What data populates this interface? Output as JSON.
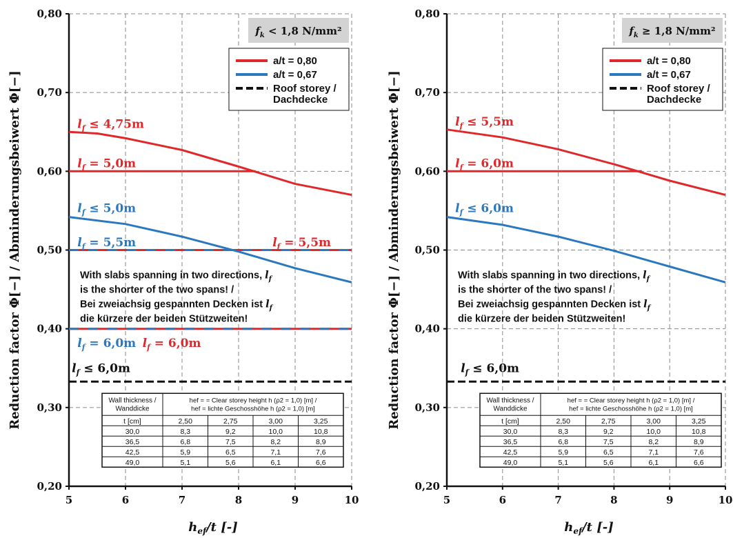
{
  "chart_data": [
    {
      "type": "line",
      "title": "",
      "condition_label": "f_k < 1,8 N/mm²",
      "cond_f": "f",
      "cond_sub": "k",
      "cond_rest": " < 1,8 N/mm²",
      "ylabel": "Reduction factor Φ[−] / Abminderungsbeiwert Φ[−]",
      "xlabel_main": "h",
      "xlabel_sub": "ef",
      "xlabel_tail": "/t [-]",
      "xlim": [
        5,
        10
      ],
      "ylim": [
        0.2,
        0.8
      ],
      "x_ticks": [
        "5",
        "6",
        "7",
        "8",
        "9",
        "10"
      ],
      "y_ticks": [
        "0,20",
        "0,30",
        "0,40",
        "0,50",
        "0,60",
        "0,70",
        "0,80"
      ],
      "grid": true,
      "legend_position": "top-right",
      "legend": [
        {
          "label": "a/t = 0,80",
          "color": "#e0282b",
          "style": "solid"
        },
        {
          "label": "a/t = 0,67",
          "color": "#2a78c0",
          "style": "solid"
        },
        {
          "label": "Roof storey /",
          "label2": "Dachdecke",
          "color": "#111111",
          "style": "dashed"
        }
      ],
      "series": [
        {
          "color": "#e0282b",
          "style": "solid",
          "points": [
            [
              5,
              0.65
            ],
            [
              5.5,
              0.648
            ],
            [
              6,
              0.642
            ],
            [
              7,
              0.627
            ],
            [
              8,
              0.606
            ],
            [
              9,
              0.584
            ],
            [
              10,
              0.57
            ]
          ]
        },
        {
          "color": "#e0282b",
          "style": "solid",
          "points": [
            [
              5,
              0.6
            ],
            [
              8.3,
              0.6
            ]
          ]
        },
        {
          "color": "#e0282b",
          "style": "solid",
          "points": [
            [
              5,
              0.5
            ],
            [
              10,
              0.5
            ]
          ]
        },
        {
          "color": "#2a78c0",
          "style": "dashdash",
          "points": [
            [
              5,
              0.5
            ],
            [
              10,
              0.5
            ]
          ]
        },
        {
          "color": "#2a78c0",
          "style": "solid",
          "points": [
            [
              5,
              0.542
            ],
            [
              6,
              0.533
            ],
            [
              7,
              0.517
            ],
            [
              8,
              0.498
            ],
            [
              9,
              0.477
            ],
            [
              10,
              0.459
            ]
          ]
        },
        {
          "color": "#e0282b",
          "style": "solid",
          "points": [
            [
              5,
              0.4
            ],
            [
              10,
              0.4
            ]
          ]
        },
        {
          "color": "#2a78c0",
          "style": "dashdash",
          "points": [
            [
              5,
              0.4
            ],
            [
              10,
              0.4
            ]
          ]
        },
        {
          "color": "#111111",
          "style": "dashed",
          "points": [
            [
              5,
              0.333
            ],
            [
              10,
              0.333
            ]
          ]
        }
      ],
      "annotations": [
        {
          "l": "l",
          "sub": "f",
          "text": " ≤ 4,75m",
          "color": "#e0282b",
          "x": 5.15,
          "y": 0.655
        },
        {
          "l": "l",
          "sub": "f",
          "text": " = 5,0m",
          "color": "#e0282b",
          "x": 5.15,
          "y": 0.605
        },
        {
          "l": "l",
          "sub": "f",
          "text": " ≤ 5,0m",
          "color": "#2a78c0",
          "x": 5.15,
          "y": 0.548
        },
        {
          "l": "l",
          "sub": "f",
          "text": " = 5,5m",
          "color": "#2a78c0",
          "x": 5.15,
          "y": 0.505
        },
        {
          "l": "l",
          "sub": "f",
          "text": " = 5,5m",
          "color": "#e0282b",
          "x": 8.6,
          "y": 0.505
        },
        {
          "l": "l",
          "sub": "f",
          "text": " = 6,0m",
          "color": "#2a78c0",
          "x": 5.15,
          "y": 0.377
        },
        {
          "l": "l",
          "sub": "f",
          "text": " = 6,0m",
          "color": "#e0282b",
          "x": 6.3,
          "y": 0.377
        },
        {
          "l": "l",
          "sub": "f",
          "text": " ≤ 6,0m",
          "color": "#111111",
          "x": 5.05,
          "y": 0.345
        }
      ],
      "note_lines": [
        {
          "text": "With slabs spanning in two directions, ",
          "lf": true
        },
        {
          "text": "is the shorter of the two spans! /",
          "lf": false
        },
        {
          "text": "Bei zweiachsig gespannten Decken ist ",
          "lf": true
        },
        {
          "text": "die kürzere der beiden Stützweiten!",
          "lf": false
        }
      ],
      "table": {
        "header_left": [
          "Wall thickness /",
          "Wanddicke"
        ],
        "header_right": [
          "hef = = Clear storey height h (ρ2 = 1,0)  [m] /",
          "hef = lichte Geschosshöhe h (ρ2 = 1,0)  [m]"
        ],
        "rows": [
          [
            "t [cm]",
            "2,50",
            "2,75",
            "3,00",
            "3,25"
          ],
          [
            "30,0",
            "8,3",
            "9,2",
            "10,0",
            "10,8"
          ],
          [
            "36,5",
            "6,8",
            "7,5",
            "8,2",
            "8,9"
          ],
          [
            "42,5",
            "5,9",
            "6,5",
            "7,1",
            "7,6"
          ],
          [
            "49,0",
            "5,1",
            "5,6",
            "6,1",
            "6,6"
          ]
        ]
      }
    },
    {
      "type": "line",
      "title": "",
      "condition_label": "f_k ≥ 1,8 N/mm²",
      "cond_f": "f",
      "cond_sub": "k",
      "cond_rest": " ≥ 1,8 N/mm²",
      "ylabel": "Reduction factor Φ[−] / Abminderungsbeiwert Φ[−]",
      "xlabel_main": "h",
      "xlabel_sub": "ef",
      "xlabel_tail": "/t [-]",
      "xlim": [
        5,
        10
      ],
      "ylim": [
        0.2,
        0.8
      ],
      "x_ticks": [
        "5",
        "6",
        "7",
        "8",
        "9",
        "10"
      ],
      "y_ticks": [
        "0,20",
        "0,30",
        "0,40",
        "0,50",
        "0,60",
        "0,70",
        "0,80"
      ],
      "grid": true,
      "legend_position": "top-right",
      "legend": [
        {
          "label": "a/t = 0,80",
          "color": "#e0282b",
          "style": "solid"
        },
        {
          "label": "a/t = 0,67",
          "color": "#2a78c0",
          "style": "solid"
        },
        {
          "label": "Roof storey /",
          "label2": "Dachdecke",
          "color": "#111111",
          "style": "dashed"
        }
      ],
      "series": [
        {
          "color": "#e0282b",
          "style": "solid",
          "points": [
            [
              5,
              0.653
            ],
            [
              6,
              0.643
            ],
            [
              7,
              0.628
            ],
            [
              8,
              0.609
            ],
            [
              9,
              0.588
            ],
            [
              10,
              0.57
            ]
          ]
        },
        {
          "color": "#e0282b",
          "style": "solid",
          "points": [
            [
              5,
              0.6
            ],
            [
              8.5,
              0.6
            ]
          ]
        },
        {
          "color": "#2a78c0",
          "style": "solid",
          "points": [
            [
              5,
              0.542
            ],
            [
              6,
              0.532
            ],
            [
              7,
              0.517
            ],
            [
              8,
              0.499
            ],
            [
              9,
              0.479
            ],
            [
              10,
              0.459
            ]
          ]
        },
        {
          "color": "#111111",
          "style": "dashed",
          "points": [
            [
              5,
              0.333
            ],
            [
              10,
              0.333
            ]
          ]
        }
      ],
      "annotations": [
        {
          "l": "l",
          "sub": "f",
          "text": " ≤ 5,5m",
          "color": "#e0282b",
          "x": 5.15,
          "y": 0.658
        },
        {
          "l": "l",
          "sub": "f",
          "text": " = 6,0m",
          "color": "#e0282b",
          "x": 5.15,
          "y": 0.605
        },
        {
          "l": "l",
          "sub": "f",
          "text": " ≤ 6,0m",
          "color": "#2a78c0",
          "x": 5.15,
          "y": 0.548
        },
        {
          "l": "l",
          "sub": "f",
          "text": " ≤ 6,0m",
          "color": "#111111",
          "x": 5.25,
          "y": 0.345
        }
      ],
      "note_lines": [
        {
          "text": "With slabs spanning in two directions, ",
          "lf": true
        },
        {
          "text": "is the shorter of the two spans! /",
          "lf": false
        },
        {
          "text": "Bei zweiachsig gespannten Decken ist ",
          "lf": true
        },
        {
          "text": "die kürzere der beiden Stützweiten!",
          "lf": false
        }
      ],
      "table": {
        "header_left": [
          "Wall thickness /",
          "Wanddicke"
        ],
        "header_right": [
          "hef = = Clear storey height h (ρ2 = 1,0)  [m] /",
          "hef = lichte Geschosshöhe h (ρ2 = 1,0)  [m]"
        ],
        "rows": [
          [
            "t [cm]",
            "2,50",
            "2,75",
            "3,00",
            "3,25"
          ],
          [
            "30,0",
            "8,3",
            "9,2",
            "10,0",
            "10,8"
          ],
          [
            "36,5",
            "6,8",
            "7,5",
            "8,2",
            "8,9"
          ],
          [
            "42,5",
            "5,9",
            "6,5",
            "7,1",
            "7,6"
          ],
          [
            "49,0",
            "5,1",
            "5,6",
            "6,1",
            "6,6"
          ]
        ]
      }
    }
  ]
}
